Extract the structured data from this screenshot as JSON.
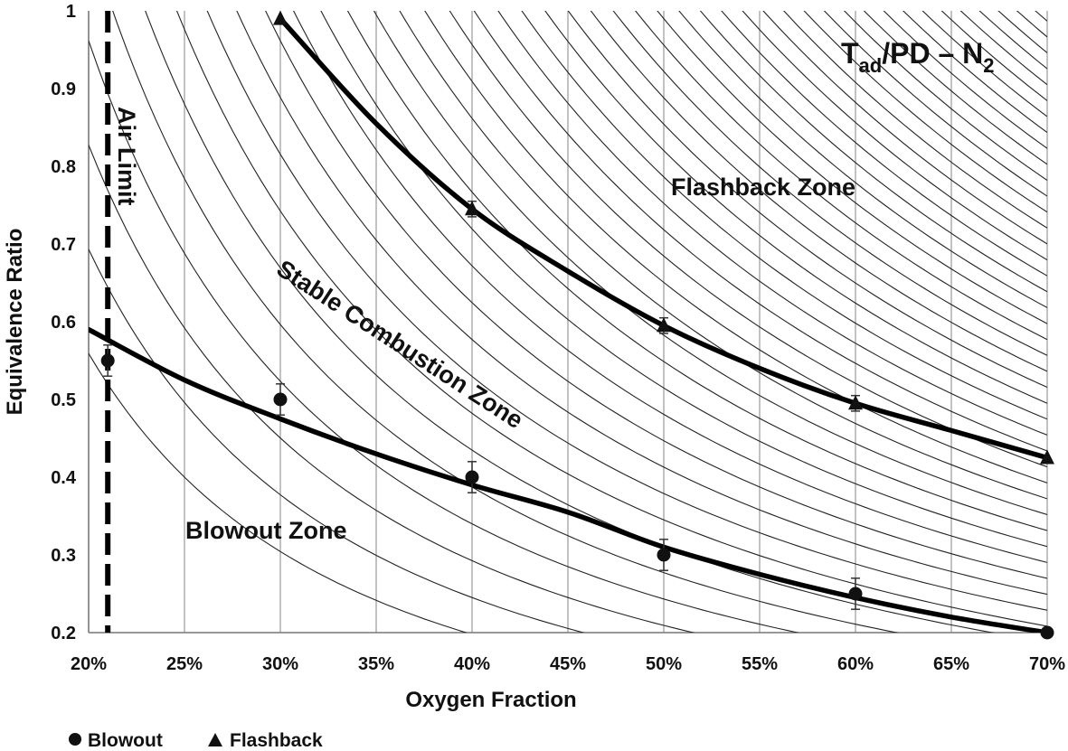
{
  "chart_data": {
    "type": "line",
    "title": "",
    "panel_label": {
      "main": "T",
      "sub": "ad",
      "mid": "/PD – N",
      "sub2": "2"
    },
    "xlabel": "Oxygen Fraction",
    "ylabel": "Equivalence Ratio",
    "xlim": [
      0.2,
      0.7
    ],
    "ylim": [
      0.2,
      1.0
    ],
    "x_ticks": [
      0.2,
      0.25,
      0.3,
      0.35,
      0.4,
      0.45,
      0.5,
      0.55,
      0.6,
      0.65,
      0.7
    ],
    "x_tick_labels": [
      "20%",
      "25%",
      "30%",
      "35%",
      "40%",
      "45%",
      "50%",
      "55%",
      "60%",
      "65%",
      "70%"
    ],
    "y_ticks": [
      0.2,
      0.3,
      0.4,
      0.5,
      0.6,
      0.7,
      0.8,
      0.9,
      1.0
    ],
    "y_tick_labels": [
      "0.2",
      "0.3",
      "0.4",
      "0.5",
      "0.6",
      "0.7",
      "0.8",
      "0.9",
      "1"
    ],
    "grid": "vertical",
    "legend_position": "bottom-left",
    "air_limit": {
      "x": 0.21,
      "label": "Air Limit"
    },
    "zone_labels": {
      "flashback": "Flashback Zone",
      "stable": "Stable Combustion Zone",
      "blowout": "Blowout Zone"
    },
    "series": [
      {
        "name": "Blowout",
        "marker": "circle",
        "x": [
          0.21,
          0.3,
          0.4,
          0.5,
          0.6,
          0.7
        ],
        "y": [
          0.55,
          0.5,
          0.4,
          0.3,
          0.25,
          0.2
        ],
        "error": [
          0.02,
          0.02,
          0.02,
          0.02,
          0.02,
          0.0
        ]
      },
      {
        "name": "Flashback",
        "marker": "triangle",
        "x": [
          0.3,
          0.4,
          0.5,
          0.6,
          0.7
        ],
        "y": [
          0.99,
          0.745,
          0.595,
          0.495,
          0.425
        ],
        "error": [
          0.0,
          0.01,
          0.01,
          0.01,
          0.0
        ]
      }
    ],
    "fit_curves": [
      {
        "series": "Blowout",
        "x": [
          0.2,
          0.25,
          0.3,
          0.35,
          0.4,
          0.45,
          0.5,
          0.55,
          0.6,
          0.65,
          0.7
        ],
        "y": [
          0.59,
          0.525,
          0.475,
          0.43,
          0.39,
          0.355,
          0.31,
          0.275,
          0.245,
          0.22,
          0.2
        ]
      },
      {
        "series": "Flashback",
        "x": [
          0.3,
          0.35,
          0.4,
          0.45,
          0.5,
          0.55,
          0.6,
          0.65,
          0.7
        ],
        "y": [
          0.99,
          0.855,
          0.745,
          0.665,
          0.595,
          0.54,
          0.495,
          0.46,
          0.425
        ]
      }
    ],
    "contour_constants": [
      0.05,
      0.062,
      0.074,
      0.086,
      0.098,
      0.11,
      0.122,
      0.134,
      0.146,
      0.158,
      0.17,
      0.182,
      0.194,
      0.206,
      0.218,
      0.23,
      0.242,
      0.254,
      0.266,
      0.278,
      0.29,
      0.302,
      0.314,
      0.326,
      0.338,
      0.35,
      0.362,
      0.374,
      0.386,
      0.398,
      0.41,
      0.422,
      0.434,
      0.446,
      0.458,
      0.47,
      0.482,
      0.494,
      0.506,
      0.518,
      0.53,
      0.542,
      0.554,
      0.566,
      0.578,
      0.59,
      0.602
    ],
    "contour_exponent": 1.5
  }
}
